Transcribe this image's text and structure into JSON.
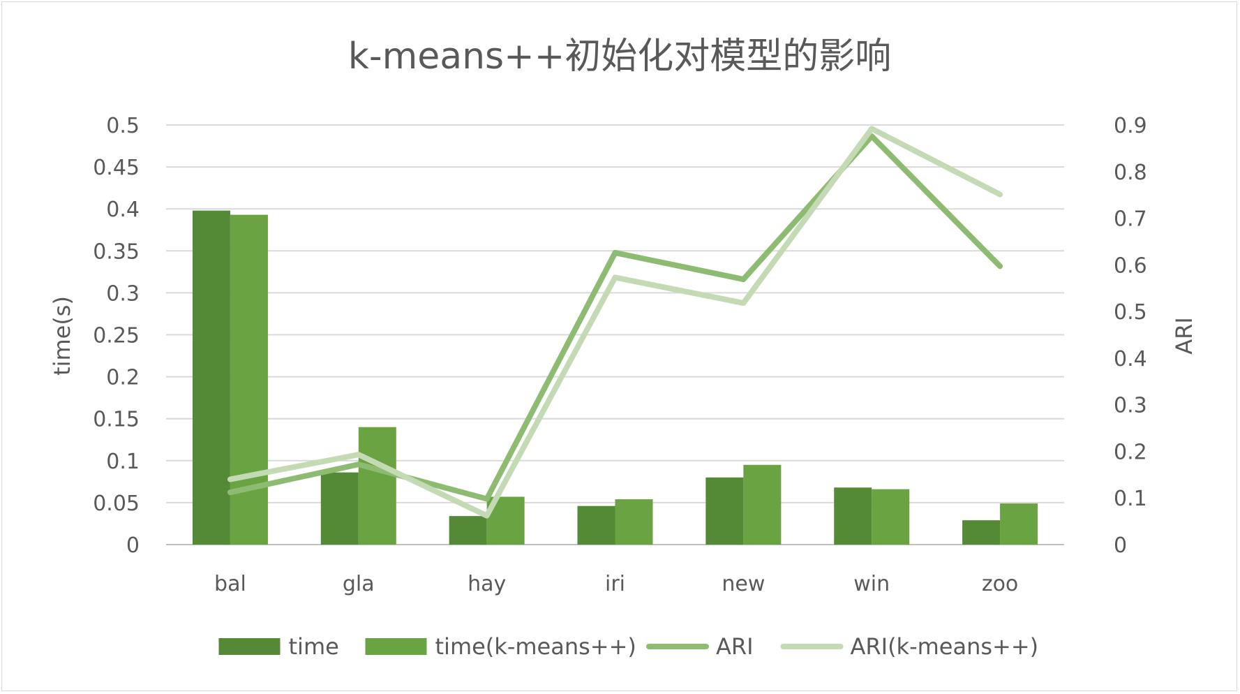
{
  "chart_data": {
    "type": "bar",
    "title": "k-means++初始化对模型的影响",
    "categories": [
      "bal",
      "gla",
      "hay",
      "iri",
      "new",
      "win",
      "zoo"
    ],
    "ylabel": "time(s)",
    "y2label": "ARI",
    "ylim": [
      0,
      0.5
    ],
    "y2lim": [
      0,
      0.9
    ],
    "yticks": [
      "0",
      "0.05",
      "0.1",
      "0.15",
      "0.2",
      "0.25",
      "0.3",
      "0.35",
      "0.4",
      "0.45",
      "0.5"
    ],
    "y2ticks": [
      "0",
      "0.1",
      "0.2",
      "0.3",
      "0.4",
      "0.5",
      "0.6",
      "0.7",
      "0.8",
      "0.9"
    ],
    "grid": true,
    "legend_position": "bottom",
    "series": [
      {
        "name": "time",
        "type": "bar",
        "axis": "left",
        "color": "#548a35",
        "values": [
          0.398,
          0.086,
          0.034,
          0.046,
          0.08,
          0.068,
          0.029
        ]
      },
      {
        "name": "time(k-means++)",
        "type": "bar",
        "axis": "left",
        "color": "#69a342",
        "values": [
          0.393,
          0.14,
          0.057,
          0.054,
          0.095,
          0.066,
          0.049
        ]
      },
      {
        "name": "ARI",
        "type": "line",
        "axis": "right",
        "color": "#8dbb72",
        "values": [
          0.112,
          0.172,
          0.098,
          0.626,
          0.569,
          0.876,
          0.597
        ]
      },
      {
        "name": "ARI(k-means++)",
        "type": "line",
        "axis": "right",
        "color": "#c3dab5",
        "values": [
          0.14,
          0.193,
          0.062,
          0.573,
          0.518,
          0.892,
          0.751
        ]
      }
    ]
  }
}
